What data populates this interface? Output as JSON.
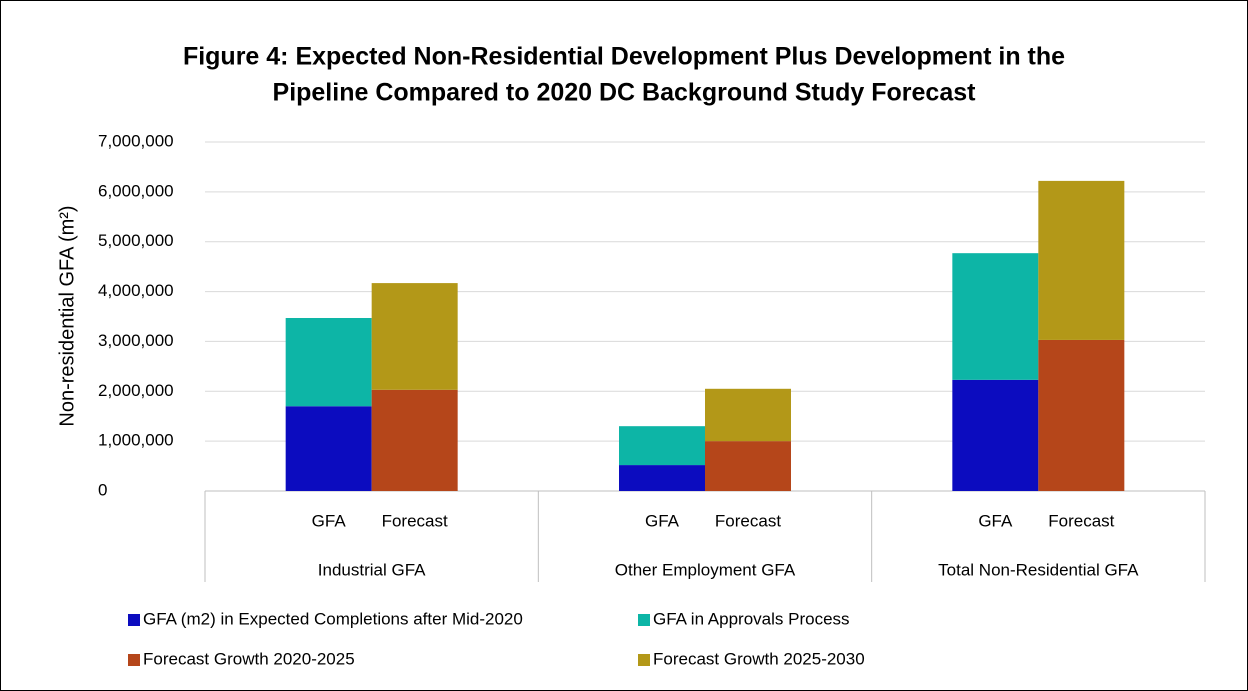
{
  "chart_data": {
    "type": "stacked-bar",
    "title": [
      "Figure 4: Expected Non-Residential Development Plus Development in the",
      "Pipeline Compared to 2020 DC Background Study Forecast"
    ],
    "y_label": "Non-residential GFA (m²)",
    "categories": [
      "GFA",
      "Forecast",
      "GFA",
      "Forecast",
      "GFA",
      "Forecast"
    ],
    "groups": [
      "Industrial GFA",
      "Other Employment GFA",
      "Total Non-Residential GFA"
    ],
    "series": [
      {
        "name": "GFA (m2) in Expected Completions after Mid-2020",
        "color": "#0c0cbf",
        "values": [
          1700000,
          null,
          520000,
          null,
          2230000,
          null
        ]
      },
      {
        "name": "GFA in Approvals Process",
        "color": "#0db5a6",
        "values": [
          1770000,
          null,
          780000,
          null,
          2540000,
          null
        ]
      },
      {
        "name": "Forecast Growth 2020-2025",
        "color": "#b5461a",
        "values": [
          null,
          2030000,
          null,
          1000000,
          null,
          3030000
        ]
      },
      {
        "name": "Forecast Growth 2025-2030",
        "color": "#b39818",
        "values": [
          null,
          2140000,
          null,
          1050000,
          null,
          3190000
        ]
      }
    ],
    "ylim": [
      0,
      7000000
    ],
    "yticks": [
      0,
      {
        "value": 1000000,
        "label": "1,000,000"
      },
      {
        "value": 2000000,
        "label": "2,000,000"
      },
      {
        "value": 3000000,
        "label": "3,000,000"
      },
      {
        "value": 4000000,
        "label": "4,000,000"
      },
      {
        "value": 5000000,
        "label": "5,000,000"
      },
      {
        "value": 6000000,
        "label": "6,000,000"
      },
      {
        "value": 7000000,
        "label": "7,000,000"
      }
    ],
    "grid": true,
    "legend": "bottom"
  }
}
